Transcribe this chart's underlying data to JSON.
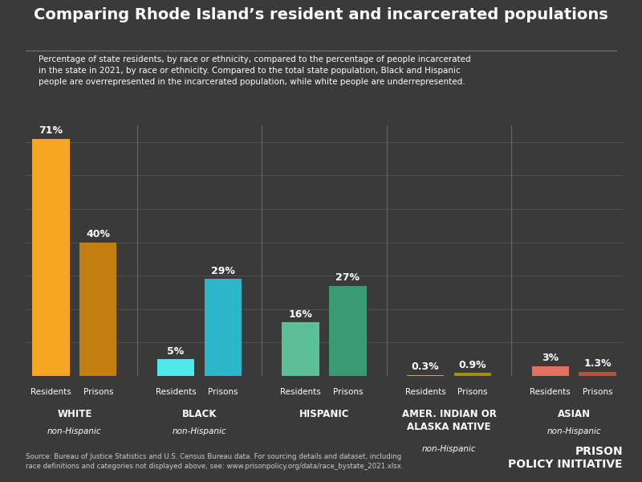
{
  "title": "Comparing Rhode Island’s resident and incarcerated populations",
  "subtitle": "Percentage of state residents, by race or ethnicity, compared to the percentage of people incarcerated\nin the state in 2021, by race or ethnicity. Compared to the total state population, Black and Hispanic\npeople are overrepresented in the incarcerated population, while white people are underrepresented.",
  "source": "Source: Bureau of Justice Statistics and U.S. Census Bureau data. For sourcing details and dataset, including\nrace definitions and categories not displayed above, see: www.prisonpolicy.org/data/race_bystate_2021.xlsx.",
  "bg_color": "#3a3a3a",
  "title_color": "#ffffff",
  "text_color": "#ffffff",
  "grid_color": "#555555",
  "divider_color": "#666666",
  "groups": [
    {
      "name": "WHITE",
      "sub": "non-Hispanic",
      "residents": 71,
      "prisons": 40,
      "resident_color": "#f5a623",
      "prison_color": "#c47d10",
      "label_residents": "71%",
      "label_prisons": "40%"
    },
    {
      "name": "BLACK",
      "sub": "non-Hispanic",
      "residents": 5,
      "prisons": 29,
      "resident_color": "#4de8e8",
      "prison_color": "#2ab8c8",
      "label_residents": "5%",
      "label_prisons": "29%"
    },
    {
      "name": "HISPANIC",
      "sub": "",
      "residents": 16,
      "prisons": 27,
      "resident_color": "#5dbf96",
      "prison_color": "#3a9a74",
      "label_residents": "16%",
      "label_prisons": "27%"
    },
    {
      "name": "AMER. INDIAN OR\nALASKA NATIVE",
      "sub": "non-Hispanic",
      "residents": 0.3,
      "prisons": 0.9,
      "resident_color": "#c8b414",
      "prison_color": "#a09010",
      "label_residents": "0.3%",
      "label_prisons": "0.9%"
    },
    {
      "name": "ASIAN",
      "sub": "non-Hispanic",
      "residents": 3,
      "prisons": 1.3,
      "resident_color": "#e07060",
      "prison_color": "#b85040",
      "label_residents": "3%",
      "label_prisons": "1.3%"
    }
  ],
  "ymax": 75,
  "bar_width": 0.55,
  "group_widths": [
    1,
    1,
    1,
    1,
    1
  ]
}
